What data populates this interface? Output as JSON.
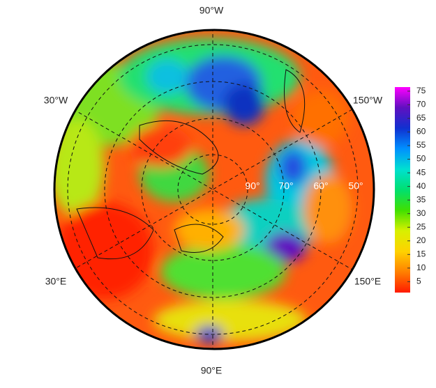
{
  "map": {
    "longitude_labels": [
      "90°W",
      "30°W",
      "150°W",
      "30°E",
      "150°E",
      "90°E"
    ],
    "latitude_labels": [
      "90°",
      "70°",
      "60°",
      "50°"
    ]
  },
  "colorbar": {
    "range": [
      1,
      76.5
    ],
    "ticks": [
      5,
      10,
      15,
      20,
      25,
      30,
      35,
      40,
      45,
      50,
      55,
      60,
      65,
      70,
      75
    ],
    "colors": [
      "#ff1a00",
      "#ff8000",
      "#ffd200",
      "#d8f000",
      "#40e000",
      "#00e070",
      "#00e0d0",
      "#0090ff",
      "#1030d0",
      "#6010c0",
      "#ff00ff"
    ]
  }
}
